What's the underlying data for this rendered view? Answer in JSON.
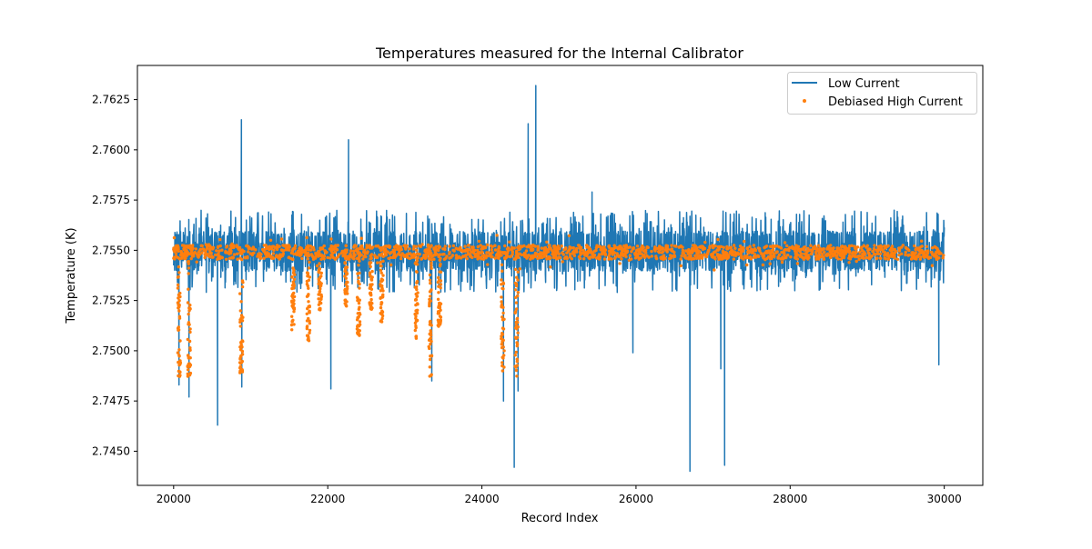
{
  "chart_data": {
    "type": "line",
    "title": "Temperatures measured for the Internal Calibrator",
    "xlabel": "Record Index",
    "ylabel": "Temperature (K)",
    "xlim": [
      19530,
      30500
    ],
    "ylim": [
      2.7433,
      2.7642
    ],
    "xticks": [
      20000,
      22000,
      24000,
      26000,
      28000,
      30000
    ],
    "yticks": [
      2.745,
      2.7475,
      2.75,
      2.7525,
      2.755,
      2.7575,
      2.76,
      2.7625
    ],
    "ytick_labels": [
      "2.7450",
      "2.7475",
      "2.7500",
      "2.7525",
      "2.7550",
      "2.7575",
      "2.7600",
      "2.7625"
    ],
    "grid": false,
    "legend": {
      "placement": "top-right",
      "entries": [
        "Low Current",
        "Debiased High Current"
      ]
    },
    "series": [
      {
        "name": "Low Current",
        "kind": "line",
        "color": "#1f77b4",
        "x_range": [
          20000,
          30000
        ],
        "baseline": 2.7549,
        "noise_band": [
          2.7541,
          2.7558
        ],
        "excursions": [
          [
            20070,
            2.7483
          ],
          [
            20200,
            2.7477
          ],
          [
            20570,
            2.7463
          ],
          [
            20880,
            2.7615
          ],
          [
            20885,
            2.7482
          ],
          [
            22040,
            2.7481
          ],
          [
            22270,
            2.7605
          ],
          [
            23350,
            2.7485
          ],
          [
            24280,
            2.7475
          ],
          [
            24420,
            2.7442
          ],
          [
            24470,
            2.748
          ],
          [
            24600,
            2.7613
          ],
          [
            24700,
            2.7632
          ],
          [
            25430,
            2.7579
          ],
          [
            25960,
            2.7499
          ],
          [
            26700,
            2.744
          ],
          [
            27100,
            2.7491
          ],
          [
            27150,
            2.7443
          ],
          [
            29930,
            2.7493
          ]
        ]
      },
      {
        "name": "Debiased High Current",
        "kind": "scatter",
        "color": "#ff7f0e",
        "x_range": [
          20000,
          30000
        ],
        "baseline": 2.7549,
        "noise_band": [
          2.7545,
          2.7552
        ],
        "dips": [
          [
            20070,
            2.7485
          ],
          [
            20200,
            2.7487
          ],
          [
            20880,
            2.7489
          ],
          [
            21550,
            2.751
          ],
          [
            21750,
            2.7505
          ],
          [
            21900,
            2.752
          ],
          [
            22240,
            2.7522
          ],
          [
            22400,
            2.7507
          ],
          [
            22560,
            2.752
          ],
          [
            22700,
            2.751
          ],
          [
            23150,
            2.7505
          ],
          [
            23330,
            2.7485
          ],
          [
            23450,
            2.7512
          ],
          [
            24270,
            2.749
          ],
          [
            24450,
            2.7487
          ]
        ]
      }
    ]
  }
}
